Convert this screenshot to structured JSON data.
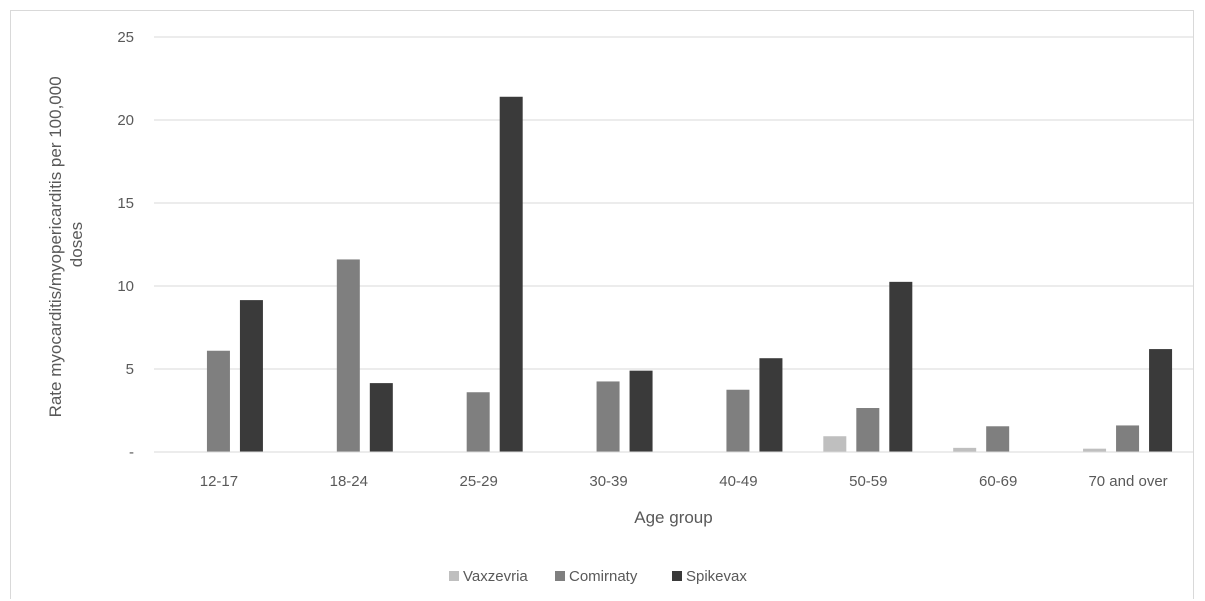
{
  "chart_data": {
    "type": "bar",
    "title": "",
    "xlabel": "Age group",
    "ylabel": "Rate myocarditis/myopericarditis per 100,000 doses",
    "ylabel_lines": [
      "Rate myocarditis/myopericarditis per 100,000",
      "doses"
    ],
    "ylim": [
      0,
      25
    ],
    "yticks": [
      0,
      5,
      10,
      15,
      20,
      25
    ],
    "ytick_labels": [
      "-",
      "5",
      "10",
      "15",
      "20",
      "25"
    ],
    "grid": true,
    "legend_position": "bottom",
    "categories": [
      "12-17",
      "18-24",
      "25-29",
      "30-39",
      "40-49",
      "50-59",
      "60-69",
      "70 and over"
    ],
    "series": [
      {
        "name": "Vaxzevria",
        "color": "#bfbfbf",
        "values": [
          0,
          0,
          0,
          0,
          0,
          0.95,
          0.25,
          0.2
        ]
      },
      {
        "name": "Comirnaty",
        "color": "#7f7f7f",
        "values": [
          6.1,
          11.6,
          3.6,
          4.25,
          3.75,
          2.65,
          1.55,
          1.6
        ]
      },
      {
        "name": "Spikevax",
        "color": "#3a3a3a",
        "values": [
          9.15,
          4.15,
          21.4,
          4.9,
          5.65,
          10.25,
          0,
          6.2
        ]
      }
    ]
  }
}
